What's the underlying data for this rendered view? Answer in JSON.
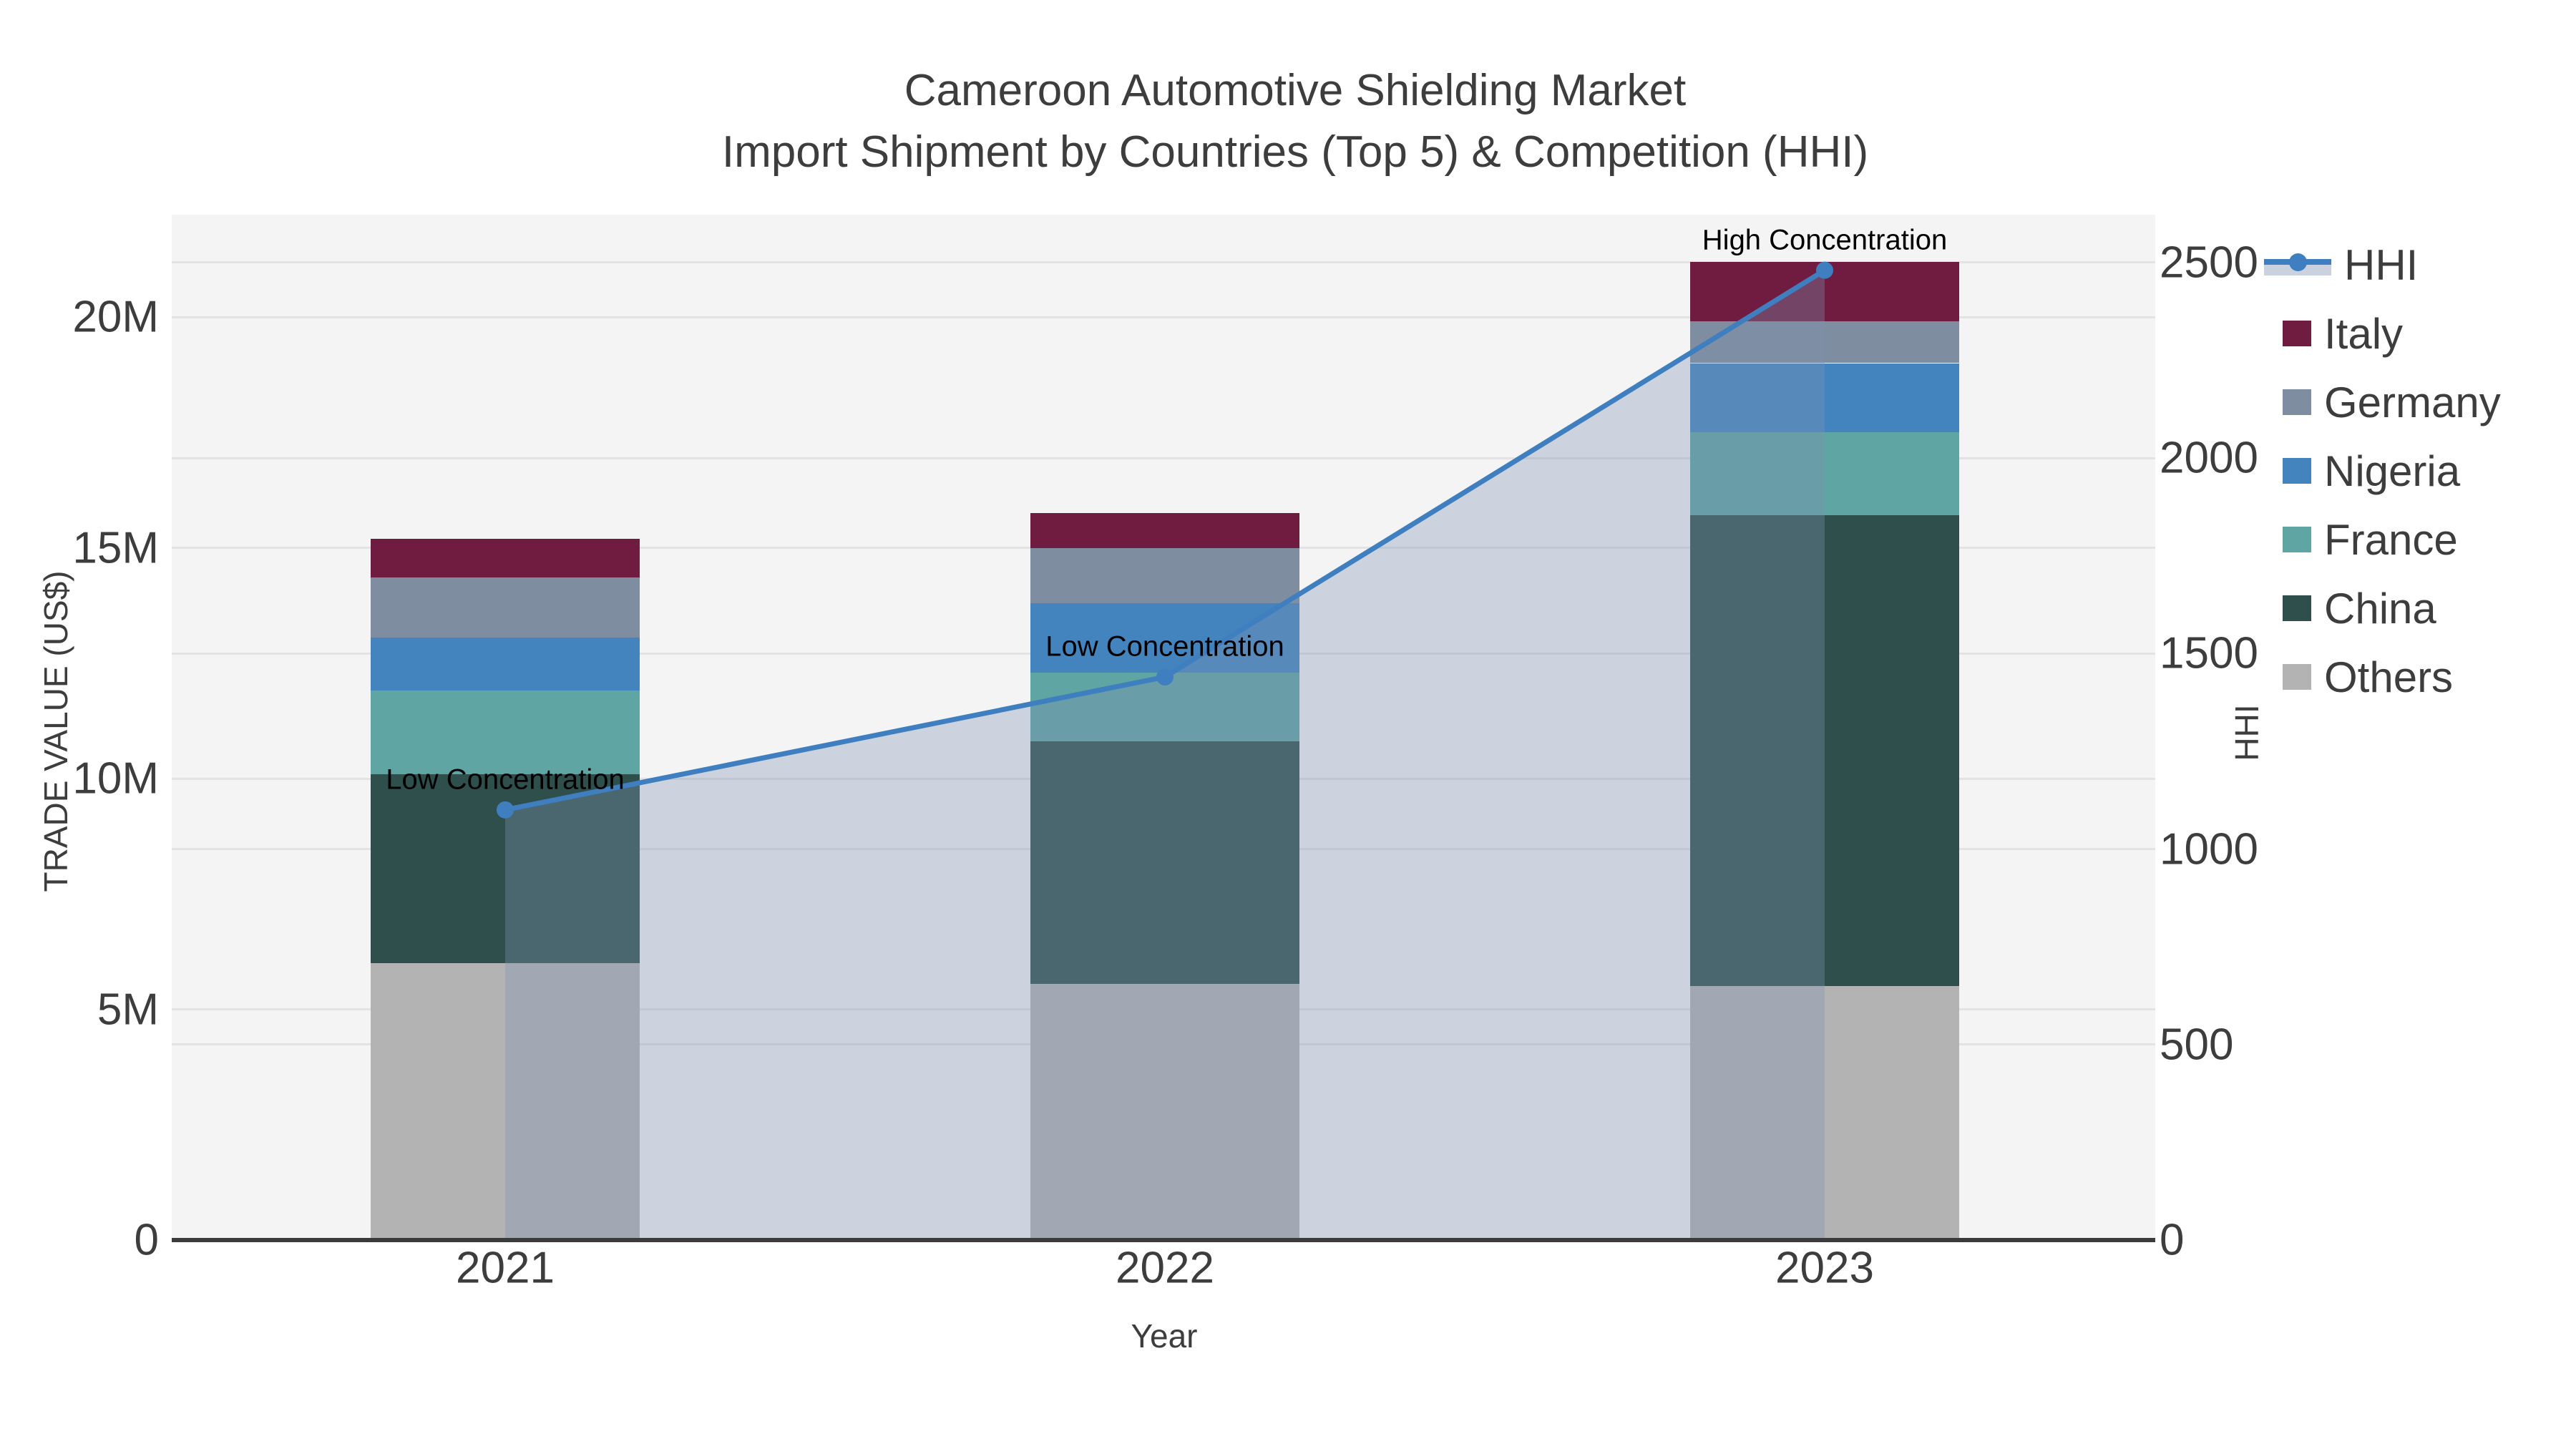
{
  "title": {
    "line1": "Cameroon Automotive Shielding Market",
    "line2": "Import Shipment by Countries (Top 5) & Competition (HHI)"
  },
  "axes": {
    "x": {
      "label": "Year"
    },
    "left": {
      "label": "TRADE VALUE (US$)"
    },
    "right": {
      "label": "HHI"
    }
  },
  "legend": {
    "items": [
      {
        "label": "HHI",
        "kind": "line"
      },
      {
        "label": "Italy",
        "kind": "box"
      },
      {
        "label": "Germany",
        "kind": "box"
      },
      {
        "label": "Nigeria",
        "kind": "box"
      },
      {
        "label": "France",
        "kind": "box"
      },
      {
        "label": "China",
        "kind": "box"
      },
      {
        "label": "Others",
        "kind": "box"
      }
    ]
  },
  "chart_data": {
    "type": "bar",
    "subtype": "stacked-bars-with-line-overlay",
    "title": "Cameroon Automotive Shielding Market — Import Shipment by Countries (Top 5) & Competition (HHI)",
    "categories": [
      "2021",
      "2022",
      "2023"
    ],
    "bar_unit": "US$ millions",
    "series": [
      {
        "name": "Others",
        "color": "#b3b3b3",
        "values": [
          6.0,
          5.55,
          5.5
        ]
      },
      {
        "name": "China",
        "color": "#2f4f4d",
        "values": [
          4.1,
          5.25,
          10.2
        ]
      },
      {
        "name": "France",
        "color": "#5fa5a4",
        "values": [
          1.8,
          1.5,
          1.8
        ]
      },
      {
        "name": "Nigeria",
        "color": "#4384bf",
        "values": [
          1.15,
          1.5,
          1.5
        ]
      },
      {
        "name": "Germany",
        "color": "#7e8d9f",
        "values": [
          1.3,
          1.2,
          0.9
        ]
      },
      {
        "name": "Italy",
        "color": "#701c41",
        "values": [
          0.85,
          0.75,
          1.3
        ]
      }
    ],
    "bar_totals_millions": [
      15.2,
      15.75,
      21.2
    ],
    "line_series": {
      "name": "HHI",
      "color": "#3f7fbf",
      "area_fill": "rgba(125,148,180,0.34)",
      "values": [
        1100,
        1440,
        2480
      ]
    },
    "left_axis": {
      "title": "TRADE VALUE (US$)",
      "tick_values": [
        0,
        5,
        10,
        15,
        20
      ],
      "tick_labels": [
        "0",
        "5M",
        "10M",
        "15M",
        "20M"
      ],
      "range_max_millions": 22.3
    },
    "right_axis": {
      "title": "HHI",
      "tick_values": [
        0,
        500,
        1000,
        1500,
        2000,
        2500
      ],
      "tick_labels": [
        "0",
        "500",
        "1000",
        "1500",
        "2000",
        "2500"
      ],
      "range_max": 2630
    },
    "x_axis": {
      "title": "Year"
    },
    "annotations": [
      {
        "category": "2021",
        "text": "Low Concentration"
      },
      {
        "category": "2022",
        "text": "Low Concentration"
      },
      {
        "category": "2023",
        "text": "High Concentration"
      }
    ],
    "grid": "horizontal gridlines for both value axes",
    "legend_position": "right-outside",
    "plot_background": "#f4f4f5"
  }
}
